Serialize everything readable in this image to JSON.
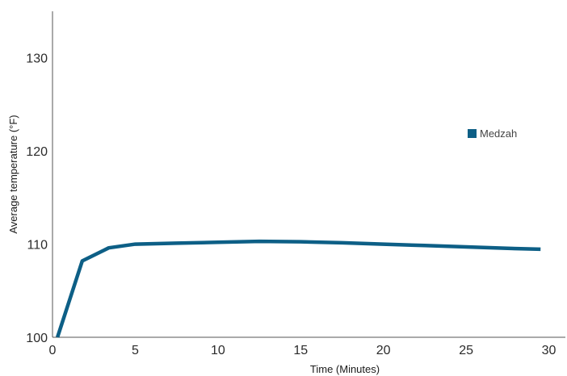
{
  "chart_data": {
    "type": "line",
    "xlabel": "Time (Minutes)",
    "ylabel": "Average temperature (°F)",
    "xlim": [
      0,
      31
    ],
    "ylim": [
      100,
      135
    ],
    "x_ticks": [
      0,
      5,
      10,
      15,
      20,
      25,
      30
    ],
    "y_ticks": [
      100,
      110,
      120,
      130
    ],
    "grid": false,
    "legend_position": "upper-right",
    "series": [
      {
        "name": "Medzah",
        "color": "#0d5f86",
        "x": [
          0.3,
          1.8,
          3.4,
          5,
          7.5,
          10,
          12.5,
          15,
          17.5,
          20,
          22.5,
          25,
          27.5,
          29.5
        ],
        "y": [
          100.0,
          108.2,
          109.6,
          110.0,
          110.1,
          110.2,
          110.3,
          110.25,
          110.15,
          110.0,
          109.85,
          109.7,
          109.55,
          109.45
        ]
      }
    ]
  }
}
